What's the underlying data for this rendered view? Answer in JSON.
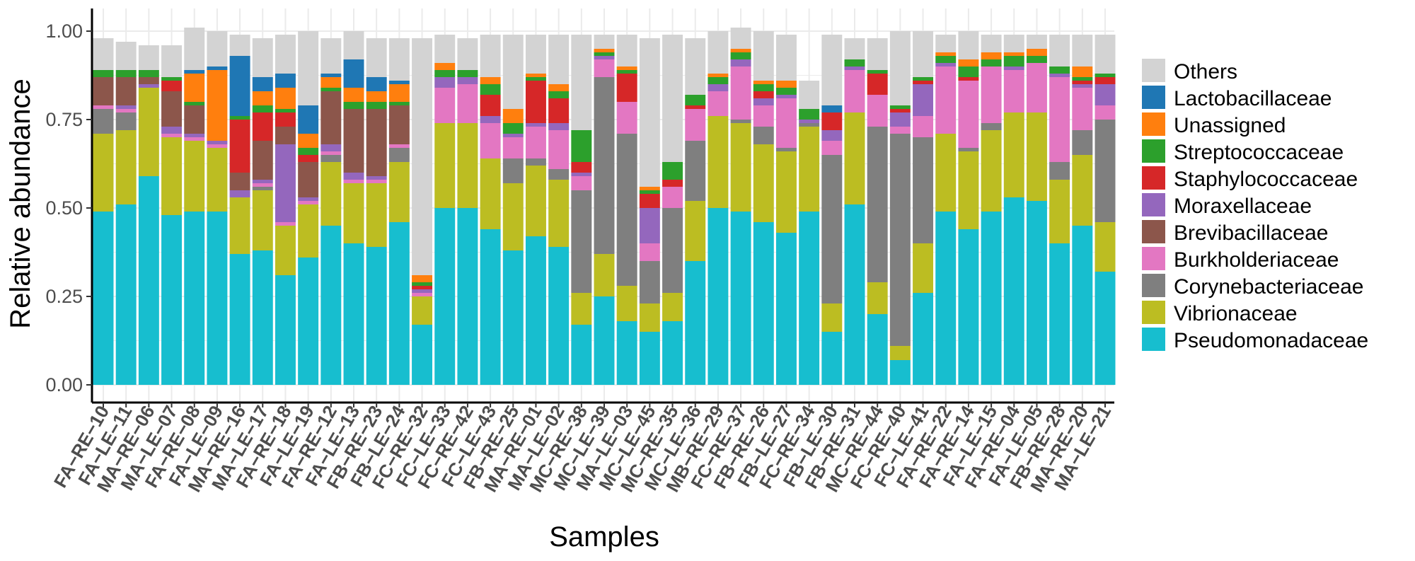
{
  "chart_data": {
    "type": "bar",
    "stacked": true,
    "title": "",
    "xlabel": "Samples",
    "ylabel": "Relative abundance",
    "ylim": [
      0,
      1.0
    ],
    "yticks": [
      "0.00",
      "0.25",
      "0.50",
      "0.75",
      "1.00"
    ],
    "categories": [
      "FA-RE-10",
      "FA-LE-11",
      "MA-RE-06",
      "MA-LE-07",
      "FA-RE-08",
      "FA-LE-09",
      "MA-RE-16",
      "MA-LE-17",
      "FA-RE-18",
      "FA-LE-19",
      "FA-RE-12",
      "FA-LE-13",
      "FB-RE-23",
      "FB-LE-24",
      "FC-RE-32",
      "FC-LE-33",
      "FC-RE-42",
      "FC-LE-43",
      "FB-RE-25",
      "MA-RE-01",
      "MA-LE-02",
      "MC-RE-38",
      "MC-LE-39",
      "MA-LE-03",
      "MC-LE-45",
      "MC-RE-35",
      "MC-LE-36",
      "MB-RE-29",
      "FC-RE-37",
      "FB-RE-26",
      "FB-LE-27",
      "FC-RE-34",
      "FB-LE-30",
      "FB-RE-31",
      "MC-RE-44",
      "FC-RE-40",
      "FC-LE-41",
      "FA-RE-22",
      "FA-RE-14",
      "FA-LE-15",
      "FA-RE-04",
      "FA-LE-05",
      "FB-RE-28",
      "MA-RE-20",
      "MA-LE-21"
    ],
    "tick_labels": [
      "FA−RE−10",
      "FA−LE−11",
      "MA−RE−06",
      "MA−LE−07",
      "FA−RE−08",
      "FA−LE−09",
      "MA−RE−16",
      "MA−LE−17",
      "FA−RE−18",
      "FA−LE−19",
      "FA−RE−12",
      "FA−LE−13",
      "FB−RE−23",
      "FB−LE−24",
      "FC−RE−32",
      "FC−LE−33",
      "FC−RE−42",
      "FC−LE−43",
      "FB−RE−25",
      "MA−RE−01",
      "MA−LE−02",
      "MC−RE−38",
      "MC−LE−39",
      "MA−LE−03",
      "MC−LE−45",
      "MC−RE−35",
      "MC−LE−36",
      "MB−RE−29",
      "FC−RE−37",
      "FB−RE−26",
      "FB−LE−27",
      "FC−RE−34",
      "FB−LE−30",
      "FB−RE−31",
      "MC−RE−44",
      "FC−RE−40",
      "FC−LE−41",
      "FA−RE−22",
      "FA−RE−14",
      "FA−LE−15",
      "FA−RE−04",
      "FA−LE−05",
      "FB−RE−28",
      "MA−RE−20",
      "MA−LE−21"
    ],
    "legend_title": "",
    "legend_position": "right",
    "series": [
      {
        "name": "Pseudomonadaceae",
        "color": "#17becf",
        "values": [
          0.49,
          0.51,
          0.59,
          0.48,
          0.49,
          0.49,
          0.37,
          0.38,
          0.31,
          0.36,
          0.45,
          0.4,
          0.39,
          0.46,
          0.17,
          0.5,
          0.5,
          0.44,
          0.38,
          0.42,
          0.39,
          0.17,
          0.25,
          0.18,
          0.15,
          0.18,
          0.35,
          0.5,
          0.49,
          0.46,
          0.43,
          0.49,
          0.15,
          0.51,
          0.2,
          0.07,
          0.26,
          0.49,
          0.44,
          0.49,
          0.53,
          0.52,
          0.4,
          0.45,
          0.32
        ]
      },
      {
        "name": "Vibrionaceae",
        "color": "#bcbd22",
        "values": [
          0.22,
          0.21,
          0.25,
          0.22,
          0.2,
          0.18,
          0.16,
          0.17,
          0.14,
          0.15,
          0.18,
          0.17,
          0.18,
          0.17,
          0.08,
          0.24,
          0.24,
          0.2,
          0.19,
          0.2,
          0.19,
          0.09,
          0.12,
          0.1,
          0.08,
          0.08,
          0.17,
          0.26,
          0.25,
          0.22,
          0.23,
          0.24,
          0.08,
          0.26,
          0.09,
          0.04,
          0.14,
          0.22,
          0.22,
          0.23,
          0.24,
          0.25,
          0.18,
          0.2,
          0.14
        ]
      },
      {
        "name": "Corynebacteriaceae",
        "color": "#7f7f7f",
        "values": [
          0.07,
          0.05,
          0,
          0,
          0,
          0,
          0,
          0.01,
          0,
          0,
          0.02,
          0,
          0,
          0.04,
          0,
          0,
          0,
          0,
          0.07,
          0.02,
          0.03,
          0.29,
          0.5,
          0.43,
          0.12,
          0.24,
          0.17,
          0,
          0.01,
          0.05,
          0.01,
          0.01,
          0.42,
          0,
          0.44,
          0.6,
          0.3,
          0,
          0.01,
          0.02,
          0,
          0,
          0.05,
          0.07,
          0.29
        ]
      },
      {
        "name": "Burkholderiaceae",
        "color": "#e377c2",
        "values": [
          0.01,
          0.01,
          0,
          0.01,
          0.01,
          0.01,
          0,
          0.01,
          0.01,
          0.01,
          0.01,
          0.01,
          0.01,
          0.01,
          0.01,
          0.1,
          0.11,
          0.1,
          0.06,
          0.09,
          0.11,
          0.04,
          0.05,
          0.09,
          0.05,
          0.06,
          0.09,
          0.07,
          0.15,
          0.06,
          0.14,
          0,
          0.04,
          0.12,
          0.09,
          0.02,
          0.06,
          0.19,
          0.19,
          0.16,
          0.12,
          0.14,
          0.24,
          0.12,
          0.04
        ]
      },
      {
        "name": "Moraxellaceae",
        "color": "#9467bd",
        "values": [
          0,
          0.01,
          0.01,
          0.02,
          0.01,
          0.01,
          0.02,
          0.01,
          0.22,
          0.01,
          0.02,
          0.02,
          0.01,
          0,
          0.01,
          0.03,
          0.02,
          0.02,
          0.01,
          0.01,
          0.02,
          0.01,
          0.01,
          0,
          0.1,
          0,
          0,
          0.02,
          0.02,
          0.02,
          0.01,
          0.01,
          0.03,
          0.01,
          0,
          0.04,
          0.09,
          0.01,
          0,
          0,
          0.01,
          0,
          0.01,
          0.01,
          0.06
        ]
      },
      {
        "name": "Brevibacillaceae",
        "color": "#8c564b",
        "values": [
          0.08,
          0.08,
          0.02,
          0.1,
          0.08,
          0,
          0.05,
          0.11,
          0.05,
          0.1,
          0.15,
          0.18,
          0.19,
          0.11,
          0,
          0,
          0,
          0,
          0,
          0,
          0,
          0,
          0,
          0,
          0,
          0,
          0,
          0,
          0,
          0,
          0,
          0,
          0,
          0,
          0,
          0,
          0,
          0,
          0,
          0,
          0,
          0,
          0,
          0,
          0
        ]
      },
      {
        "name": "Staphylococcaceae",
        "color": "#d62728",
        "values": [
          0,
          0,
          0,
          0.03,
          0,
          0,
          0.15,
          0.08,
          0.04,
          0.02,
          0,
          0,
          0,
          0,
          0.01,
          0,
          0,
          0.06,
          0,
          0.12,
          0.07,
          0.03,
          0,
          0.08,
          0.04,
          0.02,
          0.01,
          0,
          0,
          0.02,
          0,
          0,
          0.05,
          0,
          0.06,
          0.01,
          0.01,
          0,
          0.01,
          0,
          0,
          0,
          0,
          0.01,
          0.02
        ]
      },
      {
        "name": "Streptococcaceae",
        "color": "#2ca02c",
        "values": [
          0.02,
          0.02,
          0.02,
          0.01,
          0.01,
          0,
          0.01,
          0.02,
          0.01,
          0.02,
          0.01,
          0.02,
          0.02,
          0.01,
          0.01,
          0.02,
          0.02,
          0.03,
          0.03,
          0.01,
          0.02,
          0.09,
          0.01,
          0.01,
          0.01,
          0.05,
          0.03,
          0.02,
          0.02,
          0.02,
          0.02,
          0.03,
          0,
          0.02,
          0.01,
          0.01,
          0.01,
          0.02,
          0.03,
          0.02,
          0.03,
          0.02,
          0.02,
          0.01,
          0.01
        ]
      },
      {
        "name": "Unassigned",
        "color": "#ff7f0e",
        "values": [
          0,
          0,
          0,
          0,
          0.08,
          0.2,
          0,
          0.04,
          0.06,
          0.04,
          0.03,
          0.04,
          0.03,
          0.05,
          0.02,
          0.02,
          0,
          0.02,
          0.04,
          0.01,
          0.02,
          0,
          0.01,
          0.01,
          0.01,
          0,
          0,
          0.01,
          0.01,
          0.01,
          0.02,
          0,
          0,
          0,
          0,
          0,
          0,
          0.01,
          0.02,
          0.02,
          0.01,
          0.02,
          0,
          0.03,
          0
        ]
      },
      {
        "name": "Lactobacillaceae",
        "color": "#1f77b4",
        "values": [
          0,
          0,
          0,
          0,
          0.01,
          0.01,
          0.17,
          0.04,
          0.04,
          0.08,
          0.01,
          0.08,
          0.04,
          0.01,
          0,
          0,
          0,
          0,
          0,
          0,
          0,
          0,
          0,
          0,
          0,
          0,
          0,
          0,
          0,
          0,
          0,
          0,
          0.02,
          0,
          0,
          0,
          0,
          0,
          0,
          0,
          0,
          0,
          0,
          0,
          0
        ]
      },
      {
        "name": "Others",
        "color": "#d3d3d3",
        "values": [
          0.09,
          0.08,
          0.07,
          0.09,
          0.12,
          0.1,
          0.06,
          0.11,
          0.11,
          0.21,
          0.1,
          0.08,
          0.11,
          0.12,
          0.67,
          0.08,
          0.09,
          0.12,
          0.21,
          0.11,
          0.14,
          0.27,
          0.04,
          0.09,
          0.42,
          0.36,
          0.16,
          0.12,
          0.06,
          0.14,
          0.13,
          0.08,
          0.2,
          0.06,
          0.09,
          0.21,
          0.13,
          0.05,
          0.08,
          0.05,
          0.05,
          0.04,
          0.09,
          0.09,
          0.11
        ]
      }
    ],
    "legend_order": [
      "Others",
      "Lactobacillaceae",
      "Unassigned",
      "Streptococcaceae",
      "Staphylococcaceae",
      "Moraxellaceae",
      "Brevibacillaceae",
      "Burkholderiaceae",
      "Corynebacteriaceae",
      "Vibrionaceae",
      "Pseudomonadaceae"
    ],
    "panel_background": "#ffffff",
    "gridline_color": "#ebebeb"
  }
}
